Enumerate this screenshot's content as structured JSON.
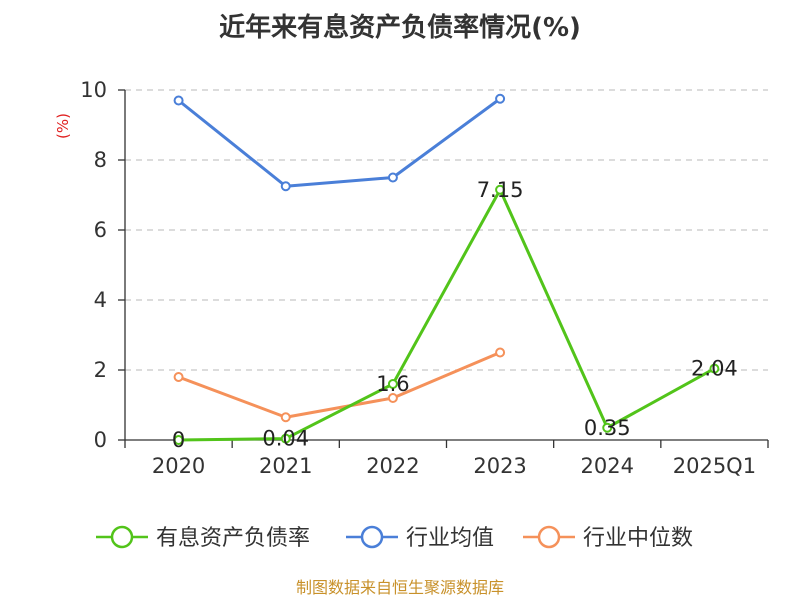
{
  "chart_data": {
    "type": "line",
    "title": "近年来有息资产负债率情况(%)",
    "ylabel": "(%)",
    "ylabel_color": "#e02020",
    "categories": [
      "2020",
      "2021",
      "2022",
      "2023",
      "2024",
      "2025Q1"
    ],
    "yticks": [
      "0",
      "2",
      "4",
      "6",
      "8",
      "10"
    ],
    "ylim": [
      0,
      10
    ],
    "grid": "dashed horizontal",
    "legend_position": "bottom",
    "series": [
      {
        "name": "有息资产负债率",
        "color": "#52c41a",
        "values": [
          0,
          0.04,
          1.6,
          7.15,
          0.35,
          2.04
        ],
        "data_labels": [
          "0",
          "0.04",
          "1.6",
          "7.15",
          "0.35",
          "2.04"
        ]
      },
      {
        "name": "行业均值",
        "color": "#4a7fd8",
        "values": [
          9.7,
          7.25,
          7.5,
          9.75,
          null,
          null
        ]
      },
      {
        "name": "行业中位数",
        "color": "#f5915a",
        "values": [
          1.8,
          0.65,
          1.2,
          2.5,
          null,
          null
        ]
      }
    ],
    "source": "制图数据来自恒生聚源数据库",
    "source_color": "#c8912a"
  }
}
